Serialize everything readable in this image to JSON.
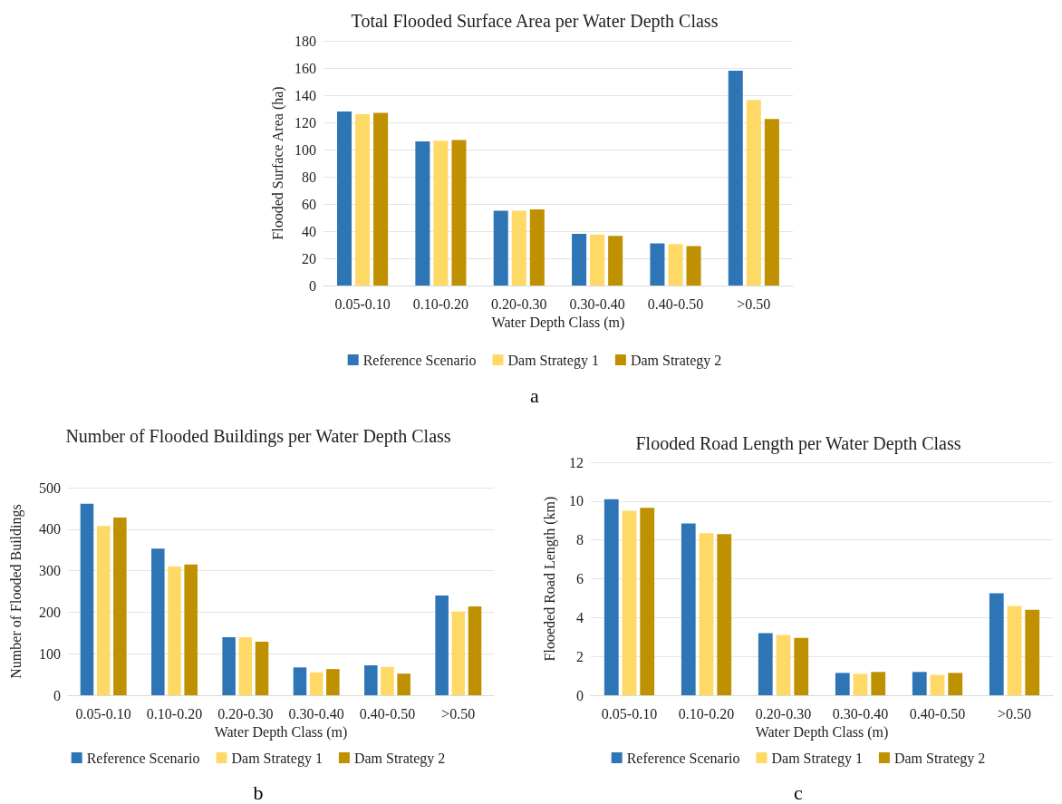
{
  "chart_data": [
    {
      "type": "bar",
      "title": "Total Flooded Surface Area per Water Depth Class",
      "xlabel": "Water Depth Class (m)",
      "ylabel": "Flooded Surface Area (ha)",
      "categories": [
        "0.05-0.10",
        "0.10-0.20",
        "0.20-0.30",
        "0.30-0.40",
        "0.40-0.50",
        ">0.50"
      ],
      "series": [
        {
          "name": "Reference Scenario",
          "color": "#2e75b6",
          "values": [
            128,
            106,
            55,
            38,
            31,
            158
          ]
        },
        {
          "name": "Dam Strategy 1",
          "color": "#ffd966",
          "values": [
            126,
            106.5,
            55,
            37.5,
            30.5,
            136.5
          ]
        },
        {
          "name": "Dam Strategy 2",
          "color": "#bf9000",
          "values": [
            127,
            107,
            56,
            36.5,
            29,
            122.5
          ]
        }
      ],
      "ylim": [
        0,
        180
      ],
      "yticks": [
        0,
        20,
        40,
        60,
        80,
        100,
        120,
        140,
        160,
        180
      ],
      "grid": "y",
      "legend": "bottom",
      "annotations": [
        "a"
      ]
    },
    {
      "type": "bar",
      "title": "Number of Flooded Buildings per Water Depth Class",
      "xlabel": "Water Depth Class (m)",
      "ylabel": "Number of Flooded Buildings",
      "categories": [
        "0.05-0.10",
        "0.10-0.20",
        "0.20-0.30",
        "0.30-0.40",
        "0.40-0.50",
        ">0.50"
      ],
      "series": [
        {
          "name": "Reference Scenario",
          "color": "#2e75b6",
          "values": [
            461,
            353,
            140,
            67,
            72,
            240
          ]
        },
        {
          "name": "Dam Strategy 1",
          "color": "#ffd966",
          "values": [
            408,
            310,
            140,
            55,
            68,
            202
          ]
        },
        {
          "name": "Dam Strategy 2",
          "color": "#bf9000",
          "values": [
            428,
            315,
            129,
            63,
            52,
            214
          ]
        }
      ],
      "ylim": [
        0,
        500
      ],
      "yticks": [
        0,
        100,
        200,
        300,
        400,
        500
      ],
      "grid": "y",
      "legend": "bottom",
      "annotations": [
        "b"
      ]
    },
    {
      "type": "bar",
      "title": "Flooded Road Length per Water Depth Class",
      "xlabel": "Water Depth Class (m)",
      "ylabel": "Flooeded Road Length (km)",
      "categories": [
        "0.05-0.10",
        "0.10-0.20",
        "0.20-0.30",
        "0.30-0.40",
        "0.40-0.50",
        ">0.50"
      ],
      "series": [
        {
          "name": "Reference Scenario",
          "color": "#2e75b6",
          "values": [
            10.1,
            8.85,
            3.2,
            1.15,
            1.2,
            5.25
          ]
        },
        {
          "name": "Dam Strategy 1",
          "color": "#ffd966",
          "values": [
            9.5,
            8.35,
            3.1,
            1.1,
            1.05,
            4.6
          ]
        },
        {
          "name": "Dam Strategy 2",
          "color": "#bf9000",
          "values": [
            9.65,
            8.3,
            2.95,
            1.2,
            1.15,
            4.4
          ]
        }
      ],
      "ylim": [
        0,
        12
      ],
      "yticks": [
        0,
        2,
        4,
        6,
        8,
        10,
        12
      ],
      "grid": "y",
      "legend": "bottom",
      "annotations": [
        "c"
      ]
    }
  ]
}
